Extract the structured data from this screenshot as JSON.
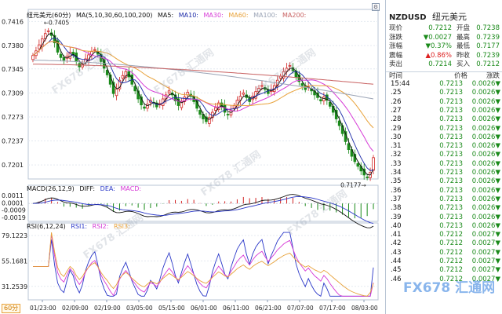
{
  "symbol_code": "NZDUSD",
  "symbol_name": "纽元美元",
  "chart_title": "纽元美元(60分)",
  "period_label": "60分",
  "ma_legend": [
    "MA(5,10,30,60,100,200)",
    "MA5:",
    "MA10:",
    "MA30:",
    "MA60:",
    "MA100:",
    "MA200:"
  ],
  "macd_legend": [
    "MACD(26,12,9)",
    "DIFF:",
    "DEA:",
    "MACD:"
  ],
  "rsi_legend": [
    "RSI(6,12,24)",
    "RSI1:",
    "RSI2:",
    "RSI3:"
  ],
  "annotations": {
    "high": "0.7405",
    "low": "0.7177"
  },
  "colors": {
    "up": "#d22222",
    "down": "#1a8a1a",
    "ma5": "#111111",
    "ma10": "#1c2aa8",
    "ma30": "#d63ad6",
    "ma60": "#e8a23a",
    "ma100": "#9aa3b5",
    "ma200": "#c86060",
    "diff": "#111111",
    "dea": "#2a37c8",
    "rsi1": "#2a37c8",
    "rsi2": "#d63ad6",
    "rsi3": "#e8a23a"
  },
  "quote": {
    "rows": [
      {
        "l": "现价",
        "v": "0.7212",
        "l2": "开盘",
        "v2": "0.7238"
      },
      {
        "l": "涨跌",
        "v": "▼0.0027",
        "l2": "最高",
        "v2": "0.7239"
      },
      {
        "l": "涨幅",
        "v": "▼0.37%",
        "l2": "最低",
        "v2": "0.7177"
      },
      {
        "l": "震幅",
        "v": "▲0.86%",
        "l2": "昨收",
        "v2": "0.7239"
      },
      {
        "l": "卖出",
        "v": "0.7214",
        "l2": "买入",
        "v2": "0.7212"
      }
    ]
  },
  "ticks_header": {
    "time": "时间",
    "price": "价格",
    "change": "涨跌"
  },
  "ticks": [
    {
      "t": "15:44",
      "p": "0.7213",
      "c": "0.0026▼"
    },
    {
      "t": ".25",
      "p": "0.7213",
      "c": "0.0026▼"
    },
    {
      "t": ".26",
      "p": "0.7213",
      "c": "0.0026▼"
    },
    {
      "t": ".27",
      "p": "0.7213",
      "c": "0.0026▼"
    },
    {
      "t": ".28",
      "p": "0.7213",
      "c": "0.0026▼"
    },
    {
      "t": ".29",
      "p": "0.7213",
      "c": "0.0026▼"
    },
    {
      "t": ".30",
      "p": "0.7213",
      "c": "0.0026▼"
    },
    {
      "t": ".31",
      "p": "0.7213",
      "c": "0.0026▼"
    },
    {
      "t": ".32",
      "p": "0.7213",
      "c": "0.0026▼"
    },
    {
      "t": ".33",
      "p": "0.7213",
      "c": "0.0026▼"
    },
    {
      "t": ".34",
      "p": "0.7213",
      "c": "0.0026▼"
    },
    {
      "t": ".35",
      "p": "0.7213",
      "c": "0.0026▼"
    },
    {
      "t": ".36",
      "p": "0.7213",
      "c": "0.0026▼"
    },
    {
      "t": ".37",
      "p": "0.7213",
      "c": "0.0026▼"
    },
    {
      "t": ".38",
      "p": "0.7213",
      "c": "0.0026▼"
    },
    {
      "t": ".39",
      "p": "0.7213",
      "c": "0.0026▼"
    },
    {
      "t": ".40",
      "p": "0.7213",
      "c": "0.0026▼"
    },
    {
      "t": ".41",
      "p": "0.7212",
      "c": "0.0027▼"
    },
    {
      "t": ".42",
      "p": "0.7212",
      "c": "0.0027▼"
    },
    {
      "t": ".43",
      "p": "0.7212",
      "c": "0.0027▼"
    },
    {
      "t": ".44",
      "p": "0.7212",
      "c": "0.0027▼"
    },
    {
      "t": ".45",
      "p": "0.7212",
      "c": "0.0027▼"
    },
    {
      "t": ".46",
      "p": "0.7212",
      "c": "0.0027▼"
    }
  ],
  "watermark": "FX678 汇通网",
  "chart_data": {
    "type": "candlestick",
    "price_axis": {
      "ylim": [
        0.718,
        0.742
      ],
      "ticks": [
        "0.7416",
        "0.7380",
        "0.7345",
        "0.7309",
        "0.7273",
        "0.7237",
        "0.7201"
      ]
    },
    "x_ticks": [
      "01/23:00",
      "02/09:00",
      "02/19:00",
      "03/05:00",
      "05/15:00",
      "06/01:00",
      "06/11:00",
      "06/21:00",
      "07/07:00",
      "07/17:00",
      "08/03:00"
    ],
    "close": [
      0.7365,
      0.7372,
      0.7381,
      0.739,
      0.7398,
      0.7402,
      0.7395,
      0.7384,
      0.737,
      0.7362,
      0.7358,
      0.7364,
      0.737,
      0.7366,
      0.7356,
      0.7348,
      0.7352,
      0.736,
      0.7366,
      0.7371,
      0.7374,
      0.7367,
      0.7356,
      0.7346,
      0.7336,
      0.7322,
      0.7308,
      0.7315,
      0.7328,
      0.7335,
      0.7341,
      0.7333,
      0.7322,
      0.7312,
      0.73,
      0.7291,
      0.7286,
      0.7292,
      0.7298,
      0.7294,
      0.7288,
      0.7293,
      0.73,
      0.7306,
      0.7312,
      0.7306,
      0.7297,
      0.729,
      0.7296,
      0.7303,
      0.731,
      0.7304,
      0.7296,
      0.7286,
      0.7277,
      0.727,
      0.7266,
      0.7272,
      0.728,
      0.7287,
      0.7294,
      0.7288,
      0.728,
      0.7276,
      0.7283,
      0.729,
      0.7298,
      0.7304,
      0.7309,
      0.7302,
      0.7296,
      0.7304,
      0.7311,
      0.7316,
      0.732,
      0.7314,
      0.7308,
      0.7314,
      0.732,
      0.7328,
      0.7334,
      0.7341,
      0.7346,
      0.735,
      0.7342,
      0.7333,
      0.7326,
      0.732,
      0.7314,
      0.7318,
      0.7312,
      0.7306,
      0.7302,
      0.7297,
      0.7303,
      0.7298,
      0.7289,
      0.728,
      0.727,
      0.726,
      0.7248,
      0.7236,
      0.7224,
      0.7214,
      0.7206,
      0.7199,
      0.7192,
      0.7186,
      0.7182,
      0.719,
      0.7212
    ],
    "ma_levels": {
      "ma30_end": 0.7238,
      "ma60_end": 0.7262,
      "ma100_end": 0.73,
      "ma200_end": 0.7322
    },
    "macd": {
      "ylim": [
        -0.0022,
        0.0014
      ],
      "ticks": [
        "0.0011",
        "0.0001",
        "-0.0009",
        "-0.0019"
      ]
    },
    "rsi": {
      "ylim": [
        20,
        85
      ],
      "ticks": [
        "79.1223",
        "55.1681",
        "31.2539"
      ]
    }
  }
}
